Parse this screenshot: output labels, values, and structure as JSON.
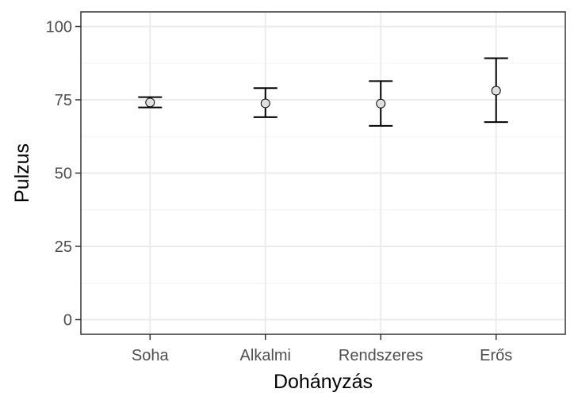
{
  "chart_data": {
    "type": "scatter",
    "subtype": "point-with-error-bars",
    "title": "",
    "xlabel": "Dohányzás",
    "ylabel": "Pulzus",
    "categories": [
      "Soha",
      "Alkalmi",
      "Rendszeres",
      "Erős"
    ],
    "series": [
      {
        "values": [
          74.1,
          73.8,
          73.7,
          78.1
        ],
        "lower": [
          72.4,
          69.1,
          66.1,
          67.4
        ],
        "upper": [
          75.9,
          79.0,
          81.4,
          89.2
        ]
      }
    ],
    "ylim": [
      -5,
      105
    ],
    "yticks": [
      0,
      25,
      50,
      75,
      100
    ],
    "ytick_labels": [
      "0",
      "25",
      "50",
      "75",
      "100"
    ],
    "grid": true,
    "legend": "none",
    "colors": {
      "point_fill": "#e0e0e0",
      "point_stroke": "#000000",
      "errorbar": "#000000",
      "grid_major": "#ebebeb",
      "grid_minor": "#f4f4f4",
      "panel_border": "#333333",
      "tick_text": "#4d4d4d"
    }
  }
}
